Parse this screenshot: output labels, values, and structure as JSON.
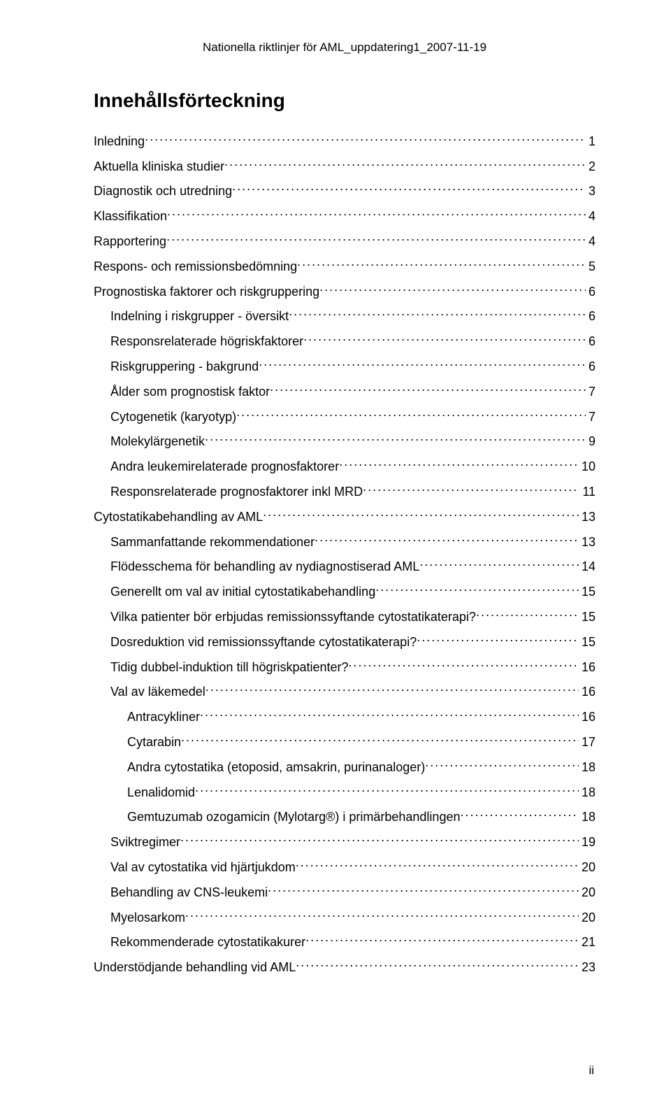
{
  "header": {
    "running_title": "Nationella riktlinjer för AML_uppdatering1_2007-11-19"
  },
  "toc": {
    "title": "Innehållsförteckning",
    "entries": [
      {
        "level": 0,
        "text": "Inledning",
        "page": "1"
      },
      {
        "level": 0,
        "text": "Aktuella kliniska studier",
        "page": "2"
      },
      {
        "level": 0,
        "text": "Diagnostik och utredning",
        "page": "3"
      },
      {
        "level": 0,
        "text": "Klassifikation",
        "page": "4"
      },
      {
        "level": 0,
        "text": "Rapportering",
        "page": "4"
      },
      {
        "level": 0,
        "text": "Respons- och remissionsbedömning",
        "page": "5"
      },
      {
        "level": 0,
        "text": "Prognostiska faktorer och riskgruppering",
        "page": "6"
      },
      {
        "level": 1,
        "text": "Indelning i riskgrupper - översikt",
        "page": "6"
      },
      {
        "level": 1,
        "text": "Responsrelaterade högriskfaktorer",
        "page": "6"
      },
      {
        "level": 1,
        "text": "Riskgruppering - bakgrund",
        "page": "6"
      },
      {
        "level": 1,
        "text": "Ålder som prognostisk faktor",
        "page": "7"
      },
      {
        "level": 1,
        "text": "Cytogenetik (karyotyp)",
        "page": "7"
      },
      {
        "level": 1,
        "text": "Molekylärgenetik",
        "page": "9"
      },
      {
        "level": 1,
        "text": "Andra leukemirelaterade prognosfaktorer",
        "page": "10"
      },
      {
        "level": 1,
        "text": "Responsrelaterade prognosfaktorer inkl MRD",
        "page": "11"
      },
      {
        "level": 0,
        "text": "Cytostatikabehandling av AML",
        "page": "13"
      },
      {
        "level": 1,
        "text": "Sammanfattande rekommendationer",
        "page": "13"
      },
      {
        "level": 1,
        "text": "Flödesschema för behandling av nydiagnostiserad AML",
        "page": "14"
      },
      {
        "level": 1,
        "text": "Generellt om val av initial cytostatikabehandling",
        "page": "15"
      },
      {
        "level": 1,
        "text": "Vilka patienter bör erbjudas remissionssyftande cytostatikaterapi?",
        "page": "15"
      },
      {
        "level": 1,
        "text": "Dosreduktion vid remissionssyftande cytostatikaterapi?",
        "page": "15"
      },
      {
        "level": 1,
        "text": "Tidig dubbel-induktion till högriskpatienter?",
        "page": "16"
      },
      {
        "level": 1,
        "text": "Val av läkemedel",
        "page": "16"
      },
      {
        "level": 2,
        "text": "Antracykliner",
        "page": "16"
      },
      {
        "level": 2,
        "text": "Cytarabin",
        "page": "17"
      },
      {
        "level": 2,
        "text": "Andra cytostatika (etoposid, amsakrin, purinanaloger)",
        "page": "18"
      },
      {
        "level": 2,
        "text": "Lenalidomid",
        "page": "18"
      },
      {
        "level": 2,
        "text": "Gemtuzumab ozogamicin (Mylotarg®) i primärbehandlingen",
        "page": "18"
      },
      {
        "level": 1,
        "text": "Sviktregimer",
        "page": "19"
      },
      {
        "level": 1,
        "text": "Val av cytostatika vid hjärtjukdom",
        "page": "20"
      },
      {
        "level": 1,
        "text": "Behandling av CNS-leukemi",
        "page": "20"
      },
      {
        "level": 1,
        "text": "Myelosarkom",
        "page": "20"
      },
      {
        "level": 1,
        "text": "Rekommenderade cytostatikakurer",
        "page": "21"
      },
      {
        "level": 0,
        "text": "Understödjande behandling vid AML",
        "page": "23"
      }
    ]
  },
  "footer": {
    "page_number": "ii"
  }
}
